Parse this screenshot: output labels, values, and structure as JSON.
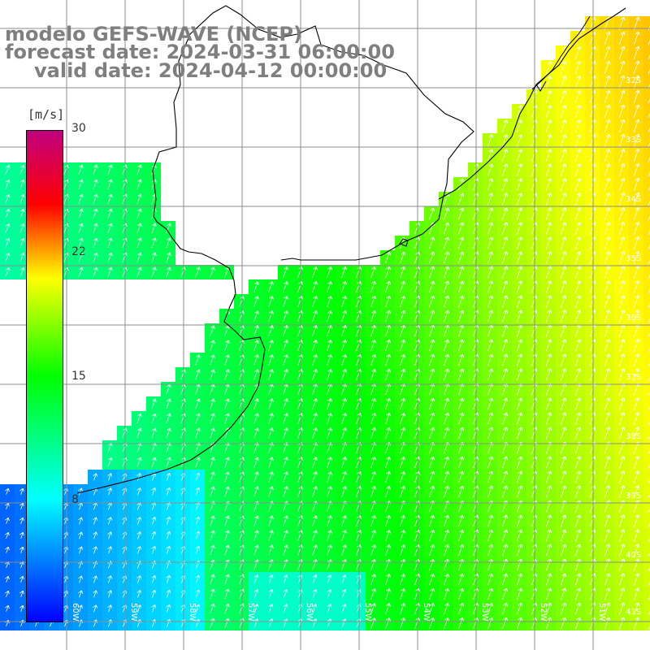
{
  "titles": {
    "line1": "modelo GEFS-WAVE (NCEP)",
    "line2": "forecast date: 2024-03-31 06:00:00",
    "line3": "valid date: 2024-04-12 00:00:00"
  },
  "colorbar": {
    "unit": "[m/s]",
    "min": 0,
    "max": 30,
    "ticks": [
      "30",
      "22",
      "15",
      "8"
    ],
    "stops": [
      "#0000ff",
      "#00ffff",
      "#00ff00",
      "#ffff00",
      "#ff0000",
      "#c00080"
    ]
  },
  "lat_labels": [
    "32S",
    "33S",
    "34S",
    "35S",
    "36S",
    "37S",
    "38S",
    "39S",
    "40S",
    "41S"
  ],
  "lon_labels": [
    "60W",
    "59W",
    "58W",
    "57W",
    "56W",
    "55W",
    "54W",
    "53W",
    "52W",
    "51W"
  ],
  "colors": {
    "land": "#ffffff",
    "grid": "#8c8c8c",
    "coast": "#000000",
    "title": "#7f7f7f",
    "arrow": "#ffffff"
  }
}
